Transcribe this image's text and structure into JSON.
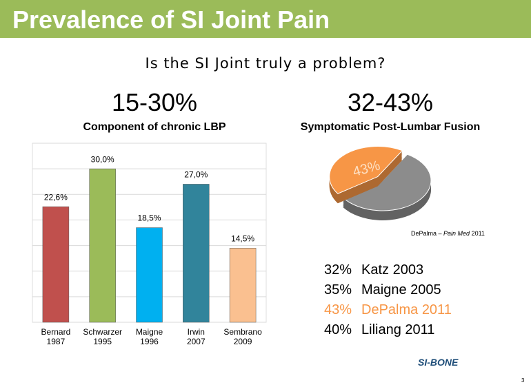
{
  "header": {
    "title": "Prevalence of SI Joint Pain"
  },
  "subtitle": "Is the SI Joint truly a problem?",
  "columns": [
    {
      "figure": "15-30%",
      "caption": "Component of chronic LBP"
    },
    {
      "figure": "32-43%",
      "caption": "Symptomatic Post-Lumbar Fusion"
    }
  ],
  "chart_data": [
    {
      "type": "bar",
      "categories": [
        "Bernard 1987",
        "Schwarzer 1995",
        "Maigne 1996",
        "Irwin 2007",
        "Sembrano 2009"
      ],
      "values": [
        22.6,
        30.0,
        18.5,
        27.0,
        14.5
      ],
      "value_labels": [
        "22,6%",
        "30,0%",
        "18,5%",
        "27,0%",
        "14,5%"
      ],
      "colors": [
        "#c0504d",
        "#9bbb59",
        "#00b0f0",
        "#31849b",
        "#fac090"
      ],
      "ylim": [
        0,
        35
      ],
      "yticks": [
        0,
        5,
        10,
        15,
        20,
        25,
        30,
        35
      ],
      "grid": true
    },
    {
      "type": "pie",
      "values": [
        57,
        43
      ],
      "value_labels": [
        null,
        "43%"
      ],
      "colors": [
        "#8c8c8c",
        "#f79646"
      ]
    }
  ],
  "citation": {
    "authors": "DePalma – ",
    "journal": "Pain Med",
    "year": " 2011"
  },
  "studies": [
    {
      "percent": "32%",
      "source": "Katz 2003",
      "highlight": false
    },
    {
      "percent": "35%",
      "source": "Maigne 2005",
      "highlight": false
    },
    {
      "percent": "43%",
      "source": "DePalma 2011",
      "highlight": true
    },
    {
      "percent": "40%",
      "source": "Liliang 2011",
      "highlight": false
    }
  ],
  "logo": "SI-BONE",
  "page_number": "3"
}
